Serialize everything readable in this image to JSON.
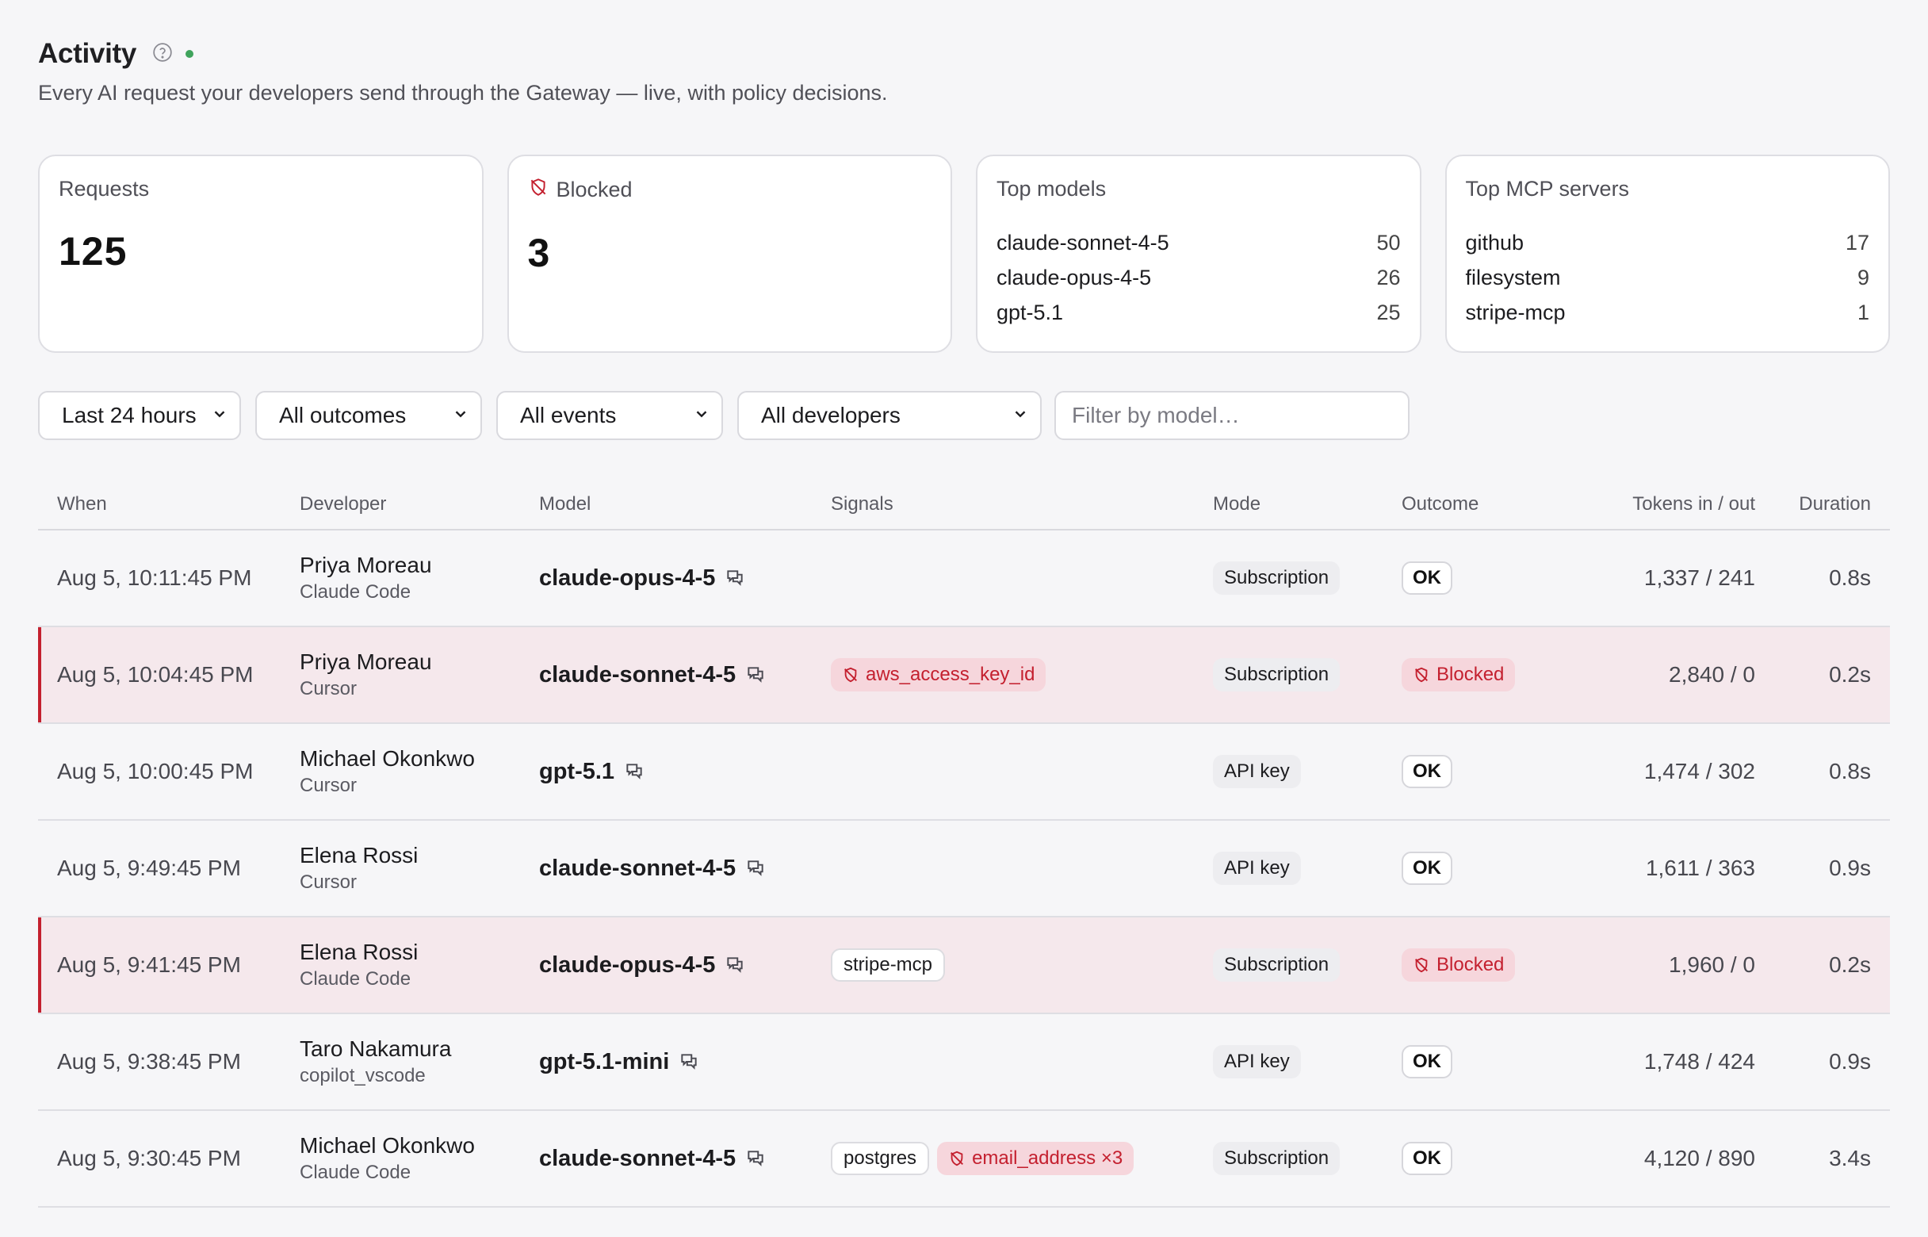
{
  "header": {
    "title": "Activity",
    "subtitle": "Every AI request your developers send through the Gateway — live, with policy decisions."
  },
  "cards": {
    "requests": {
      "label": "Requests",
      "value": "125"
    },
    "blocked": {
      "label": "Blocked",
      "value": "3"
    },
    "top_models": {
      "label": "Top models",
      "items": [
        {
          "name": "claude-sonnet-4-5",
          "count": "50"
        },
        {
          "name": "claude-opus-4-5",
          "count": "26"
        },
        {
          "name": "gpt-5.1",
          "count": "25"
        }
      ]
    },
    "top_mcp": {
      "label": "Top MCP servers",
      "items": [
        {
          "name": "github",
          "count": "17"
        },
        {
          "name": "filesystem",
          "count": "9"
        },
        {
          "name": "stripe-mcp",
          "count": "1"
        }
      ]
    }
  },
  "filters": {
    "time": "Last 24 hours",
    "outcomes": "All outcomes",
    "events": "All events",
    "developers": "All developers",
    "model_placeholder": "Filter by model…"
  },
  "table": {
    "columns": [
      "When",
      "Developer",
      "Model",
      "Signals",
      "Mode",
      "Outcome",
      "Tokens in / out",
      "Duration"
    ],
    "rows": [
      {
        "when": "Aug 5, 10:11:45 PM",
        "developer": "Priya Moreau",
        "client": "Claude Code",
        "model": "claude-opus-4-5",
        "signals": [],
        "mode": "Subscription",
        "outcome": "OK",
        "blocked": false,
        "tokens": "1,337 / 241",
        "duration": "0.8s"
      },
      {
        "when": "Aug 5, 10:04:45 PM",
        "developer": "Priya Moreau",
        "client": "Cursor",
        "model": "claude-sonnet-4-5",
        "signals": [
          {
            "text": "aws_access_key_id",
            "kind": "red"
          }
        ],
        "mode": "Subscription",
        "outcome": "Blocked",
        "blocked": true,
        "tokens": "2,840 / 0",
        "duration": "0.2s"
      },
      {
        "when": "Aug 5, 10:00:45 PM",
        "developer": "Michael Okonkwo",
        "client": "Cursor",
        "model": "gpt-5.1",
        "signals": [],
        "mode": "API key",
        "outcome": "OK",
        "blocked": false,
        "tokens": "1,474 / 302",
        "duration": "0.8s"
      },
      {
        "when": "Aug 5, 9:49:45 PM",
        "developer": "Elena Rossi",
        "client": "Cursor",
        "model": "claude-sonnet-4-5",
        "signals": [],
        "mode": "API key",
        "outcome": "OK",
        "blocked": false,
        "tokens": "1,611 / 363",
        "duration": "0.9s"
      },
      {
        "when": "Aug 5, 9:41:45 PM",
        "developer": "Elena Rossi",
        "client": "Claude Code",
        "model": "claude-opus-4-5",
        "signals": [
          {
            "text": "stripe-mcp",
            "kind": "gray"
          }
        ],
        "mode": "Subscription",
        "outcome": "Blocked",
        "blocked": true,
        "tokens": "1,960 / 0",
        "duration": "0.2s"
      },
      {
        "when": "Aug 5, 9:38:45 PM",
        "developer": "Taro Nakamura",
        "client": "copilot_vscode",
        "model": "gpt-5.1-mini",
        "signals": [],
        "mode": "API key",
        "outcome": "OK",
        "blocked": false,
        "tokens": "1,748 / 424",
        "duration": "0.9s"
      },
      {
        "when": "Aug 5, 9:30:45 PM",
        "developer": "Michael Okonkwo",
        "client": "Claude Code",
        "model": "claude-sonnet-4-5",
        "signals": [
          {
            "text": "postgres",
            "kind": "gray"
          },
          {
            "text": "email_address ×3",
            "kind": "red"
          }
        ],
        "mode": "Subscription",
        "outcome": "OK",
        "blocked": false,
        "tokens": "4,120 / 890",
        "duration": "3.4s"
      }
    ]
  },
  "colors": {
    "background": "#f6f6f8",
    "blocked_row": "#f5e8ec",
    "blocked_accent": "#c4202f",
    "live_dot": "#3fa35c"
  }
}
